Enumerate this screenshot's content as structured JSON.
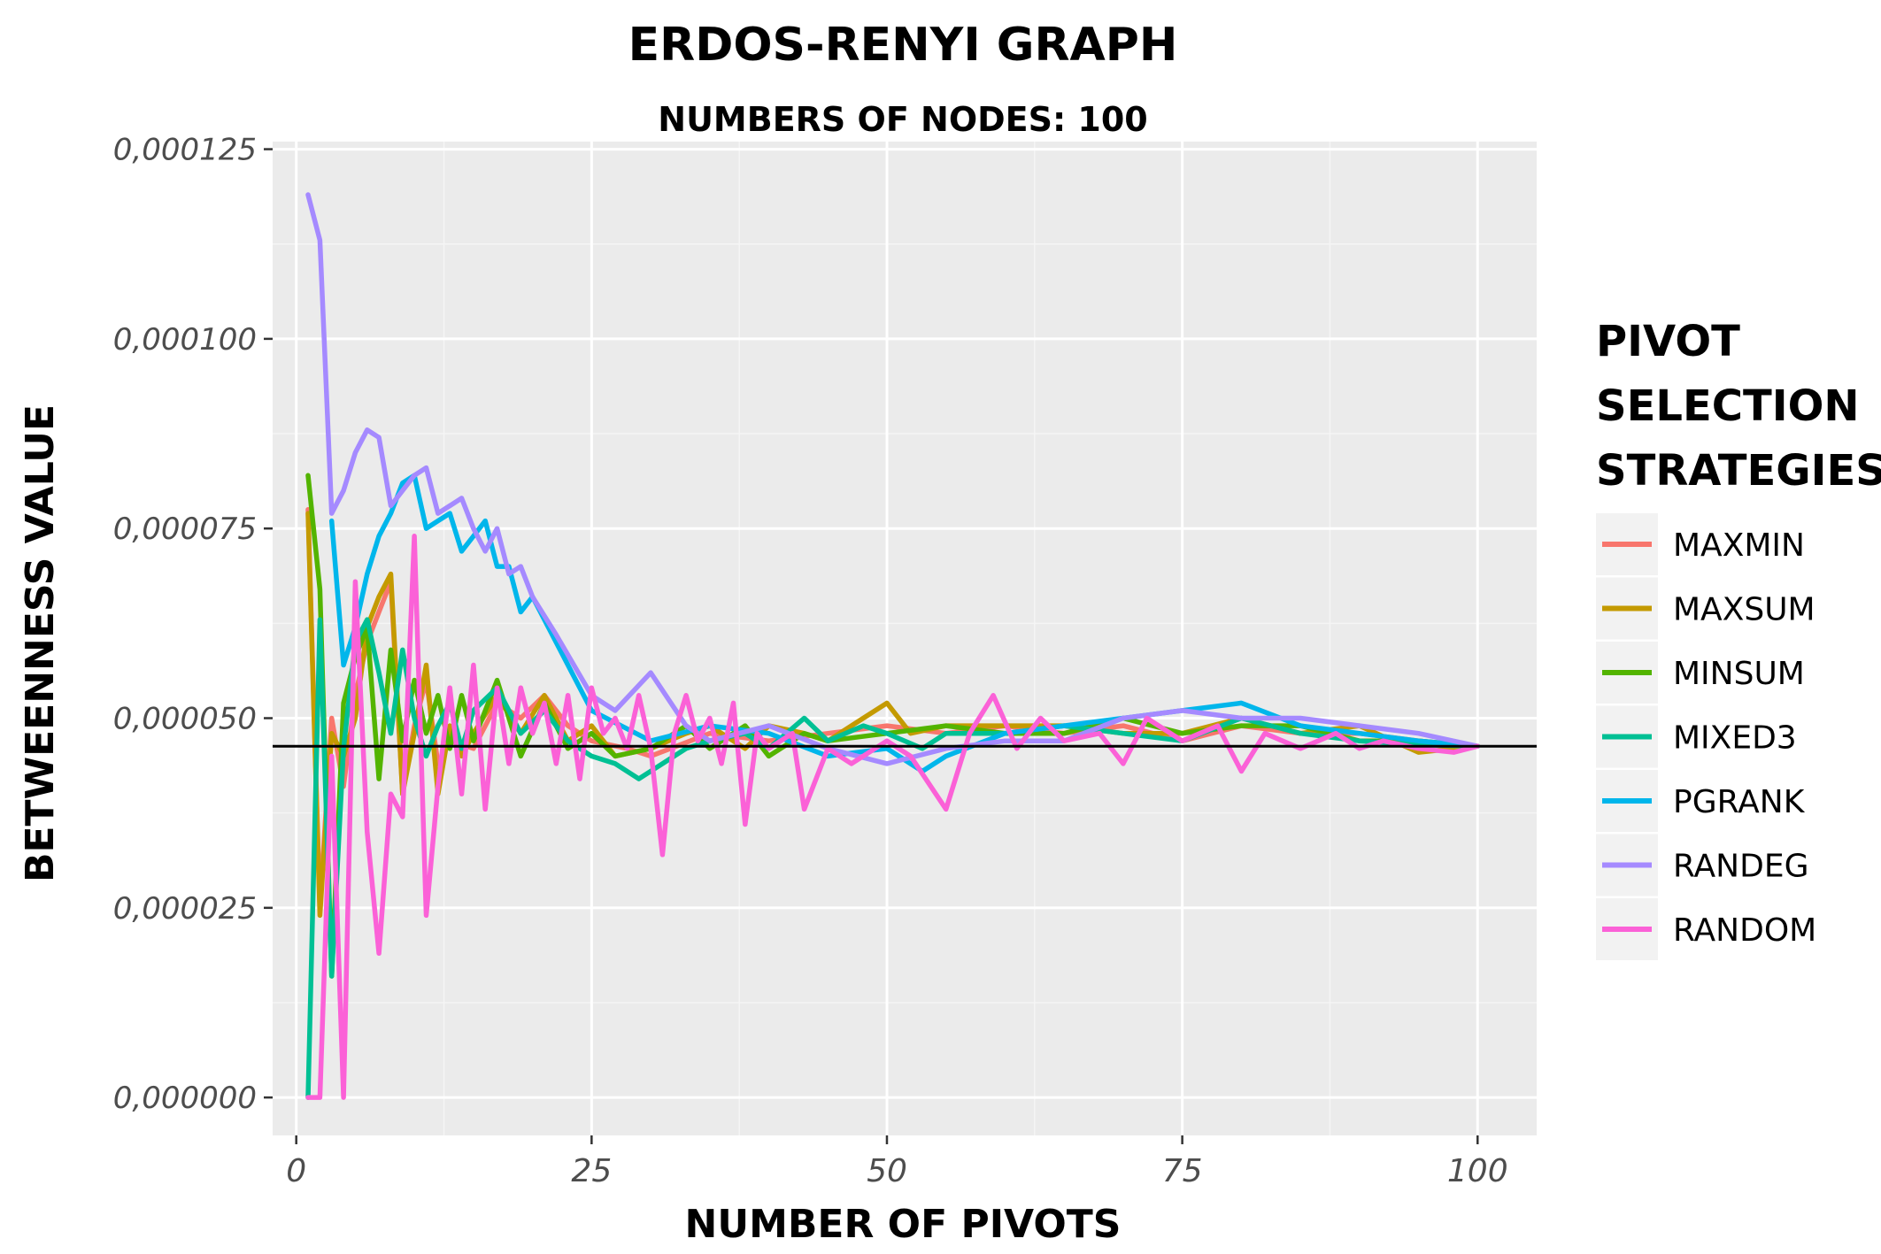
{
  "chart_data": {
    "type": "line",
    "title": "ERDOS-RENYI GRAPH",
    "subtitle": "NUMBERS OF NODES: 100",
    "xlabel": "NUMBER OF PIVOTS",
    "ylabel": "BETWEENNESS VALUE",
    "xlim": [
      -2,
      105
    ],
    "ylim": [
      -5e-06,
      0.000126
    ],
    "x_ticks": [
      0,
      25,
      50,
      75,
      100
    ],
    "x_tick_labels": [
      "0",
      "25",
      "50",
      "75",
      "100"
    ],
    "y_ticks": [
      0.0,
      2.5e-05,
      5e-05,
      7.5e-05,
      0.0001,
      0.000125
    ],
    "y_tick_labels": [
      "0,000000",
      "0,000025",
      "0,000050",
      "0,000075",
      "0,000100",
      "0,000125"
    ],
    "grid": true,
    "reference_line": {
      "y": 4.63e-05,
      "color": "#000000"
    },
    "legend": {
      "title": "PIVOT SELECTION STRATEGIES",
      "position": "right"
    },
    "series": [
      {
        "name": "MAXMIN",
        "color": "#F8766D",
        "points": [
          [
            1,
            7.75e-05
          ],
          [
            2,
            2.5e-05
          ],
          [
            3,
            5e-05
          ],
          [
            4,
            4.1e-05
          ],
          [
            5,
            5.3e-05
          ],
          [
            6,
            6e-05
          ],
          [
            7,
            6.4e-05
          ],
          [
            8,
            6.8e-05
          ],
          [
            9,
            4e-05
          ],
          [
            10,
            4.9e-05
          ],
          [
            11,
            5.5e-05
          ],
          [
            12,
            4.4e-05
          ],
          [
            13,
            4.7e-05
          ],
          [
            15,
            4.6e-05
          ],
          [
            17,
            5.2e-05
          ],
          [
            19,
            5e-05
          ],
          [
            21,
            5.3e-05
          ],
          [
            23,
            4.9e-05
          ],
          [
            25,
            4.7e-05
          ],
          [
            28,
            4.6e-05
          ],
          [
            30,
            4.5e-05
          ],
          [
            35,
            4.8e-05
          ],
          [
            40,
            4.7e-05
          ],
          [
            45,
            4.8e-05
          ],
          [
            50,
            4.9e-05
          ],
          [
            55,
            4.8e-05
          ],
          [
            60,
            4.9e-05
          ],
          [
            65,
            4.8e-05
          ],
          [
            70,
            4.9e-05
          ],
          [
            75,
            4.7e-05
          ],
          [
            80,
            4.9e-05
          ],
          [
            85,
            4.8e-05
          ],
          [
            90,
            4.8e-05
          ],
          [
            95,
            4.7e-05
          ],
          [
            100,
            4.63e-05
          ]
        ]
      },
      {
        "name": "MAXSUM",
        "color": "#C49A00",
        "points": [
          [
            1,
            7.7e-05
          ],
          [
            2,
            2.4e-05
          ],
          [
            3,
            4.8e-05
          ],
          [
            4,
            4.5e-05
          ],
          [
            5,
            5e-05
          ],
          [
            6,
            6.2e-05
          ],
          [
            7,
            6.6e-05
          ],
          [
            8,
            6.9e-05
          ],
          [
            9,
            4e-05
          ],
          [
            10,
            4.8e-05
          ],
          [
            11,
            5.7e-05
          ],
          [
            12,
            4e-05
          ],
          [
            13,
            4.9e-05
          ],
          [
            14,
            4.5e-05
          ],
          [
            15,
            4.8e-05
          ],
          [
            17,
            5.3e-05
          ],
          [
            19,
            4.8e-05
          ],
          [
            21,
            5.3e-05
          ],
          [
            23,
            4.7e-05
          ],
          [
            25,
            4.9e-05
          ],
          [
            27,
            4.5e-05
          ],
          [
            30,
            4.6e-05
          ],
          [
            33,
            4.8e-05
          ],
          [
            35,
            4.9e-05
          ],
          [
            38,
            4.6e-05
          ],
          [
            40,
            4.9e-05
          ],
          [
            43,
            4.8e-05
          ],
          [
            45,
            4.7e-05
          ],
          [
            48,
            5e-05
          ],
          [
            50,
            5.2e-05
          ],
          [
            52,
            4.8e-05
          ],
          [
            55,
            4.9e-05
          ],
          [
            60,
            4.9e-05
          ],
          [
            65,
            4.9e-05
          ],
          [
            70,
            4.8e-05
          ],
          [
            75,
            4.8e-05
          ],
          [
            80,
            5e-05
          ],
          [
            85,
            4.8e-05
          ],
          [
            90,
            4.9e-05
          ],
          [
            95,
            4.55e-05
          ],
          [
            100,
            4.63e-05
          ]
        ]
      },
      {
        "name": "MINSUM",
        "color": "#53B400",
        "points": [
          [
            1,
            8.2e-05
          ],
          [
            2,
            6.7e-05
          ],
          [
            3,
            1.6e-05
          ],
          [
            4,
            5.2e-05
          ],
          [
            5,
            5.8e-05
          ],
          [
            6,
            6.2e-05
          ],
          [
            7,
            4.2e-05
          ],
          [
            8,
            5.9e-05
          ],
          [
            9,
            4.7e-05
          ],
          [
            10,
            5.5e-05
          ],
          [
            11,
            4.8e-05
          ],
          [
            12,
            5.3e-05
          ],
          [
            13,
            4.6e-05
          ],
          [
            14,
            5.3e-05
          ],
          [
            15,
            4.7e-05
          ],
          [
            17,
            5.5e-05
          ],
          [
            19,
            4.5e-05
          ],
          [
            21,
            5.2e-05
          ],
          [
            23,
            4.6e-05
          ],
          [
            25,
            4.8e-05
          ],
          [
            27,
            4.5e-05
          ],
          [
            30,
            4.6e-05
          ],
          [
            33,
            4.9e-05
          ],
          [
            35,
            4.6e-05
          ],
          [
            38,
            4.9e-05
          ],
          [
            40,
            4.5e-05
          ],
          [
            43,
            4.8e-05
          ],
          [
            45,
            4.7e-05
          ],
          [
            50,
            4.8e-05
          ],
          [
            55,
            4.9e-05
          ],
          [
            60,
            4.8e-05
          ],
          [
            65,
            4.8e-05
          ],
          [
            70,
            5e-05
          ],
          [
            75,
            4.8e-05
          ],
          [
            80,
            4.9e-05
          ],
          [
            85,
            4.9e-05
          ],
          [
            90,
            4.7e-05
          ],
          [
            95,
            4.7e-05
          ],
          [
            100,
            4.63e-05
          ]
        ]
      },
      {
        "name": "MIXED3",
        "color": "#00C094",
        "points": [
          [
            1,
            0.0
          ],
          [
            2,
            6.3e-05
          ],
          [
            3,
            1.6e-05
          ],
          [
            4,
            4.6e-05
          ],
          [
            5,
            6e-05
          ],
          [
            6,
            6.3e-05
          ],
          [
            7,
            5.6e-05
          ],
          [
            8,
            4.8e-05
          ],
          [
            9,
            5.9e-05
          ],
          [
            10,
            5e-05
          ],
          [
            11,
            4.5e-05
          ],
          [
            12,
            4.9e-05
          ],
          [
            13,
            5.2e-05
          ],
          [
            14,
            4.6e-05
          ],
          [
            15,
            5.1e-05
          ],
          [
            17,
            5.4e-05
          ],
          [
            19,
            4.8e-05
          ],
          [
            21,
            5.1e-05
          ],
          [
            23,
            4.7e-05
          ],
          [
            25,
            4.5e-05
          ],
          [
            27,
            4.4e-05
          ],
          [
            29,
            4.2e-05
          ],
          [
            31,
            4.4e-05
          ],
          [
            33,
            4.6e-05
          ],
          [
            35,
            4.7e-05
          ],
          [
            38,
            4.8e-05
          ],
          [
            40,
            4.6e-05
          ],
          [
            43,
            5e-05
          ],
          [
            45,
            4.7e-05
          ],
          [
            48,
            4.9e-05
          ],
          [
            50,
            4.8e-05
          ],
          [
            53,
            4.6e-05
          ],
          [
            55,
            4.8e-05
          ],
          [
            60,
            4.8e-05
          ],
          [
            65,
            4.9e-05
          ],
          [
            70,
            4.8e-05
          ],
          [
            75,
            4.7e-05
          ],
          [
            80,
            5e-05
          ],
          [
            85,
            4.8e-05
          ],
          [
            90,
            4.7e-05
          ],
          [
            95,
            4.65e-05
          ],
          [
            100,
            4.63e-05
          ]
        ]
      },
      {
        "name": "PGRANK",
        "color": "#00B6EB",
        "points": [
          [
            3,
            7.6e-05
          ],
          [
            4,
            5.7e-05
          ],
          [
            5,
            6.2e-05
          ],
          [
            6,
            6.9e-05
          ],
          [
            7,
            7.4e-05
          ],
          [
            8,
            7.7e-05
          ],
          [
            9,
            8.1e-05
          ],
          [
            10,
            8.2e-05
          ],
          [
            11,
            7.5e-05
          ],
          [
            12,
            7.6e-05
          ],
          [
            13,
            7.7e-05
          ],
          [
            14,
            7.2e-05
          ],
          [
            15,
            7.4e-05
          ],
          [
            16,
            7.6e-05
          ],
          [
            17,
            7e-05
          ],
          [
            18,
            7e-05
          ],
          [
            19,
            6.4e-05
          ],
          [
            20,
            6.6e-05
          ],
          [
            25,
            5.1e-05
          ],
          [
            30,
            4.7e-05
          ],
          [
            35,
            4.9e-05
          ],
          [
            40,
            4.8e-05
          ],
          [
            45,
            4.5e-05
          ],
          [
            50,
            4.6e-05
          ],
          [
            53,
            4.3e-05
          ],
          [
            55,
            4.5e-05
          ],
          [
            60,
            4.8e-05
          ],
          [
            65,
            4.9e-05
          ],
          [
            70,
            5e-05
          ],
          [
            75,
            5.1e-05
          ],
          [
            80,
            5.2e-05
          ],
          [
            85,
            4.9e-05
          ],
          [
            90,
            4.8e-05
          ],
          [
            95,
            4.7e-05
          ],
          [
            100,
            4.63e-05
          ]
        ]
      },
      {
        "name": "RANDEG",
        "color": "#A58AFF",
        "points": [
          [
            1,
            0.000119
          ],
          [
            2,
            0.000113
          ],
          [
            3,
            7.7e-05
          ],
          [
            4,
            8e-05
          ],
          [
            5,
            8.5e-05
          ],
          [
            6,
            8.8e-05
          ],
          [
            7,
            8.7e-05
          ],
          [
            8,
            7.8e-05
          ],
          [
            9,
            8e-05
          ],
          [
            10,
            8.2e-05
          ],
          [
            11,
            8.3e-05
          ],
          [
            12,
            7.7e-05
          ],
          [
            13,
            7.8e-05
          ],
          [
            14,
            7.9e-05
          ],
          [
            15,
            7.5e-05
          ],
          [
            16,
            7.2e-05
          ],
          [
            17,
            7.5e-05
          ],
          [
            18,
            6.9e-05
          ],
          [
            19,
            7e-05
          ],
          [
            20,
            6.6e-05
          ],
          [
            22,
            6.1e-05
          ],
          [
            25,
            5.3e-05
          ],
          [
            27,
            5.1e-05
          ],
          [
            30,
            5.6e-05
          ],
          [
            33,
            4.9e-05
          ],
          [
            35,
            4.7e-05
          ],
          [
            40,
            4.9e-05
          ],
          [
            45,
            4.6e-05
          ],
          [
            50,
            4.4e-05
          ],
          [
            55,
            4.6e-05
          ],
          [
            60,
            4.7e-05
          ],
          [
            65,
            4.7e-05
          ],
          [
            70,
            5e-05
          ],
          [
            75,
            5.1e-05
          ],
          [
            80,
            5e-05
          ],
          [
            85,
            5e-05
          ],
          [
            90,
            4.9e-05
          ],
          [
            95,
            4.8e-05
          ],
          [
            100,
            4.63e-05
          ]
        ]
      },
      {
        "name": "RANDOM",
        "color": "#FB61D7",
        "points": [
          [
            1,
            0.0
          ],
          [
            2,
            0.0
          ],
          [
            3,
            4.5e-05
          ],
          [
            4,
            0.0
          ],
          [
            5,
            6.8e-05
          ],
          [
            6,
            3.5e-05
          ],
          [
            7,
            1.9e-05
          ],
          [
            8,
            4e-05
          ],
          [
            9,
            3.7e-05
          ],
          [
            10,
            7.4e-05
          ],
          [
            11,
            2.4e-05
          ],
          [
            12,
            4.1e-05
          ],
          [
            13,
            5.4e-05
          ],
          [
            14,
            4e-05
          ],
          [
            15,
            5.7e-05
          ],
          [
            16,
            3.8e-05
          ],
          [
            17,
            5.4e-05
          ],
          [
            18,
            4.4e-05
          ],
          [
            19,
            5.4e-05
          ],
          [
            20,
            4.8e-05
          ],
          [
            21,
            5.2e-05
          ],
          [
            22,
            4.4e-05
          ],
          [
            23,
            5.3e-05
          ],
          [
            24,
            4.2e-05
          ],
          [
            25,
            5.4e-05
          ],
          [
            26,
            4.8e-05
          ],
          [
            27,
            5e-05
          ],
          [
            28,
            4.6e-05
          ],
          [
            29,
            5.3e-05
          ],
          [
            30,
            4.6e-05
          ],
          [
            31,
            3.2e-05
          ],
          [
            32,
            4.8e-05
          ],
          [
            33,
            5.3e-05
          ],
          [
            34,
            4.7e-05
          ],
          [
            35,
            5e-05
          ],
          [
            36,
            4.4e-05
          ],
          [
            37,
            5.2e-05
          ],
          [
            38,
            3.6e-05
          ],
          [
            39,
            4.8e-05
          ],
          [
            40,
            4.6e-05
          ],
          [
            42,
            4.8e-05
          ],
          [
            43,
            3.8e-05
          ],
          [
            45,
            4.6e-05
          ],
          [
            47,
            4.4e-05
          ],
          [
            50,
            4.7e-05
          ],
          [
            52,
            4.5e-05
          ],
          [
            55,
            3.8e-05
          ],
          [
            57,
            4.8e-05
          ],
          [
            59,
            5.3e-05
          ],
          [
            61,
            4.6e-05
          ],
          [
            63,
            5e-05
          ],
          [
            65,
            4.7e-05
          ],
          [
            68,
            4.8e-05
          ],
          [
            70,
            4.4e-05
          ],
          [
            72,
            5e-05
          ],
          [
            75,
            4.7e-05
          ],
          [
            78,
            4.9e-05
          ],
          [
            80,
            4.3e-05
          ],
          [
            82,
            4.8e-05
          ],
          [
            85,
            4.6e-05
          ],
          [
            88,
            4.8e-05
          ],
          [
            90,
            4.6e-05
          ],
          [
            92,
            4.7e-05
          ],
          [
            95,
            4.6e-05
          ],
          [
            98,
            4.55e-05
          ],
          [
            100,
            4.63e-05
          ]
        ]
      }
    ]
  }
}
